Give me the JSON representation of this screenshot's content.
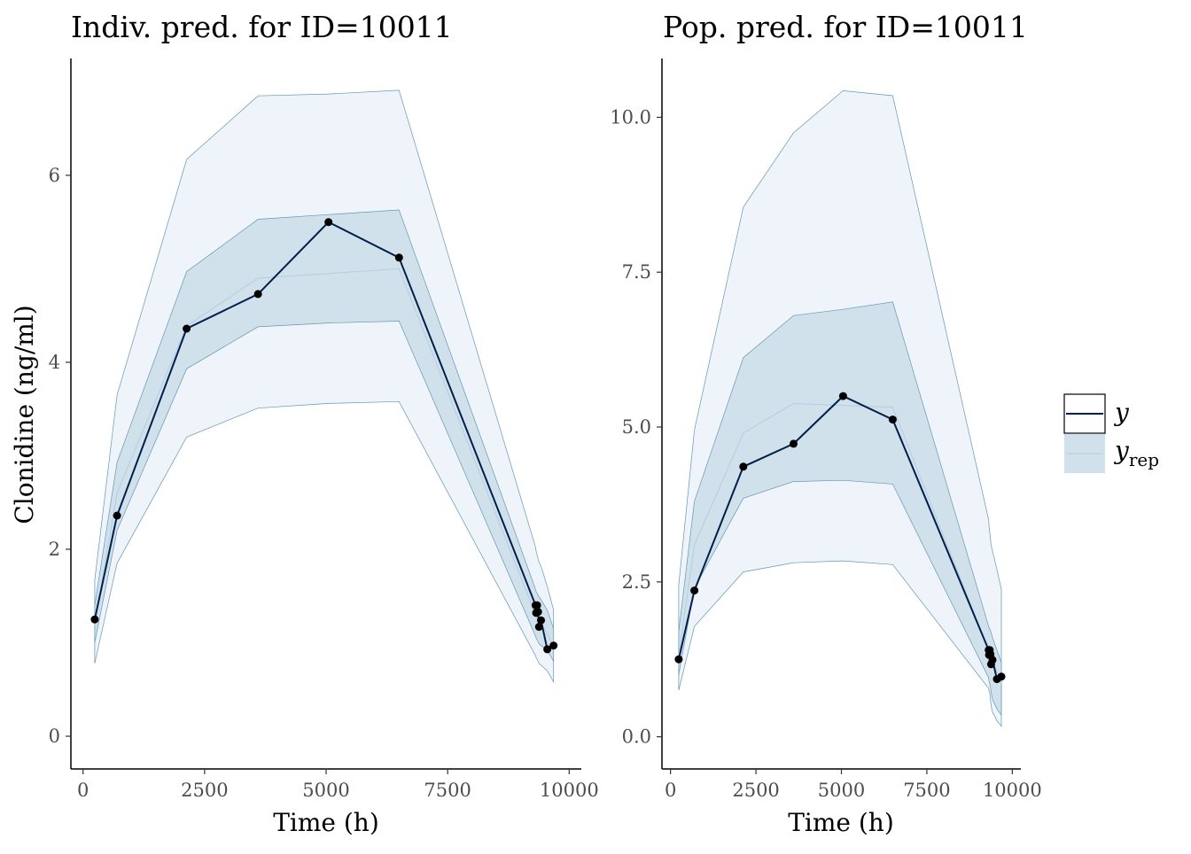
{
  "colors": {
    "outer_band": "#eef4f9",
    "inner_band": "#d1e1ec",
    "band_stroke": "#6497b1",
    "median_line": "#b3cde0",
    "observed_line": "#011f4b",
    "points": "#000000"
  },
  "legend": {
    "y_label": "y",
    "yrep_label": "y",
    "yrep_subscript": "rep"
  },
  "chart_data": [
    {
      "type": "line",
      "title": "Indiv. pred. for ID=10011",
      "xlabel": "Time (h)",
      "ylabel": "Clonidine (ng/ml)",
      "xlim": [
        -250,
        10250
      ],
      "ylim": [
        -0.35,
        7.25
      ],
      "xticks": [
        0,
        2500,
        5000,
        7500,
        10000
      ],
      "xtick_labels": [
        "0",
        "2500",
        "5000",
        "7500",
        "10000"
      ],
      "yticks": [
        0,
        2,
        4,
        6
      ],
      "ytick_labels": [
        "0",
        "2",
        "4",
        "6"
      ],
      "x": [
        240,
        700,
        2130,
        3600,
        5050,
        6500,
        9310,
        9320,
        9340,
        9360,
        9380,
        9420,
        9550,
        9680
      ],
      "observed": [
        1.25,
        2.36,
        4.36,
        4.73,
        5.5,
        5.12,
        1.4,
        1.32,
        1.4,
        1.33,
        1.17,
        1.24,
        0.93,
        0.97
      ],
      "median": [
        1.2,
        2.6,
        4.39,
        4.9,
        4.95,
        5.0,
        1.3,
        1.27,
        1.25,
        1.23,
        1.22,
        1.2,
        1.1,
        0.95
      ],
      "inner_lower": [
        1.0,
        2.2,
        3.93,
        4.38,
        4.42,
        4.44,
        1.07,
        1.05,
        1.03,
        1.01,
        0.99,
        0.97,
        0.92,
        0.8
      ],
      "inner_upper": [
        1.4,
        2.93,
        4.97,
        5.53,
        5.58,
        5.63,
        1.57,
        1.55,
        1.53,
        1.51,
        1.49,
        1.46,
        1.35,
        1.15
      ],
      "outer_lower": [
        0.78,
        1.85,
        3.2,
        3.51,
        3.56,
        3.58,
        0.86,
        0.84,
        0.82,
        0.8,
        0.78,
        0.76,
        0.7,
        0.58
      ],
      "outer_upper": [
        1.67,
        3.65,
        6.17,
        6.85,
        6.87,
        6.91,
        2.02,
        1.98,
        1.94,
        1.9,
        1.86,
        1.82,
        1.6,
        1.35
      ]
    },
    {
      "type": "line",
      "title": "Pop. pred. for ID=10011",
      "xlabel": "Time (h)",
      "ylabel": "",
      "xlim": [
        -250,
        10250
      ],
      "ylim": [
        -0.52,
        10.95
      ],
      "xticks": [
        0,
        2500,
        5000,
        7500,
        10000
      ],
      "xtick_labels": [
        "0",
        "2500",
        "5000",
        "7500",
        "10000"
      ],
      "yticks": [
        0.0,
        2.5,
        5.0,
        7.5,
        10.0
      ],
      "ytick_labels": [
        "0.0",
        "2.5",
        "5.0",
        "7.5",
        "10.0"
      ],
      "x": [
        240,
        700,
        2130,
        3600,
        5050,
        6500,
        9310,
        9320,
        9340,
        9360,
        9380,
        9420,
        9550,
        9680
      ],
      "observed": [
        1.25,
        2.36,
        4.36,
        4.73,
        5.5,
        5.12,
        1.4,
        1.32,
        1.4,
        1.33,
        1.17,
        1.24,
        0.93,
        0.97
      ],
      "median": [
        1.3,
        3.1,
        4.9,
        5.38,
        5.35,
        5.32,
        1.4,
        1.38,
        1.36,
        1.34,
        1.3,
        1.24,
        1.05,
        0.85
      ],
      "inner_lower": [
        1.0,
        2.4,
        3.85,
        4.12,
        4.14,
        4.08,
        0.95,
        0.9,
        0.85,
        0.8,
        0.72,
        0.6,
        0.45,
        0.35
      ],
      "inner_upper": [
        1.7,
        3.8,
        6.12,
        6.8,
        6.9,
        7.02,
        1.78,
        1.76,
        1.74,
        1.72,
        1.68,
        1.6,
        1.4,
        1.2
      ],
      "outer_lower": [
        0.75,
        1.78,
        2.66,
        2.81,
        2.84,
        2.78,
        0.78,
        0.74,
        0.7,
        0.6,
        0.5,
        0.4,
        0.26,
        0.17
      ],
      "outer_upper": [
        2.45,
        4.95,
        8.55,
        9.75,
        10.43,
        10.35,
        3.5,
        3.4,
        3.3,
        3.2,
        3.1,
        3.0,
        2.7,
        2.38
      ]
    }
  ]
}
